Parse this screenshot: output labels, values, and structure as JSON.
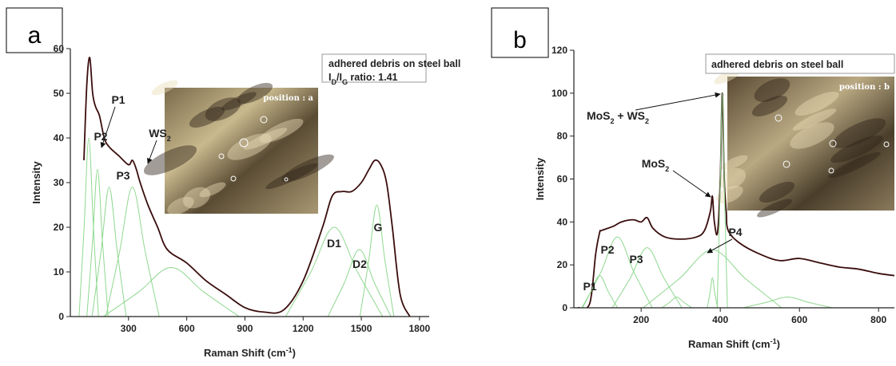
{
  "chart_data": [
    {
      "type": "line",
      "panel_label": "a",
      "xlabel": [
        "Raman Shift (cm",
        {
          "sup": "-1"
        },
        ")"
      ],
      "ylabel": "Intensity",
      "xlim": [
        0,
        1850
      ],
      "ylim": [
        0,
        60
      ],
      "xticks": [
        300,
        600,
        900,
        1200,
        1500,
        1800
      ],
      "yticks": [
        0,
        10,
        20,
        30,
        40,
        50,
        60
      ],
      "box_text": [
        "adhered debris on steel ball",
        [
          "I",
          {
            "sub": "D"
          },
          "/I",
          {
            "sub": "G"
          },
          " ratio: 1.41"
        ]
      ],
      "inset_label": "position : a",
      "annotations": [
        "P1",
        "P2",
        "P3",
        [
          "WS",
          {
            "sub": "2"
          }
        ],
        "D1",
        "D2",
        "G"
      ],
      "series": [
        {
          "color": "#3a0d0d",
          "x": [
            70,
            85,
            100,
            115,
            130,
            150,
            175,
            200,
            250,
            300,
            320,
            340,
            360,
            400,
            450,
            500,
            600,
            700,
            800,
            900,
            1000,
            1100,
            1200,
            1300,
            1350,
            1400,
            1450,
            1500,
            1540,
            1570,
            1600,
            1630,
            1660,
            1700,
            1750
          ],
          "values": [
            35,
            52,
            58,
            50,
            47,
            45,
            40,
            38,
            36,
            34,
            35,
            33,
            30,
            25,
            20,
            15,
            12,
            8,
            5,
            2,
            1,
            1.5,
            8,
            20,
            27,
            28,
            28,
            30,
            33,
            35,
            34,
            30,
            20,
            5,
            0
          ]
        },
        {
          "color": "#8fd88f",
          "x": [
            45,
            71,
            95,
            119,
            145
          ],
          "values": [
            0,
            20,
            40,
            20,
            0
          ]
        },
        {
          "color": "#8fd88f",
          "x": [
            85,
            114,
            140,
            166,
            195
          ],
          "values": [
            0,
            16.5,
            33,
            16.5,
            0
          ]
        },
        {
          "color": "#8fd88f",
          "x": [
            112,
            158,
            200,
            242,
            288
          ],
          "values": [
            0,
            14.5,
            29,
            14.5,
            0
          ]
        },
        {
          "color": "#8fd88f",
          "x": [
            183,
            254,
            320,
            386,
            458
          ],
          "values": [
            0,
            14.5,
            29,
            14.5,
            0
          ]
        },
        {
          "color": "#8fd88f",
          "x": [
            170,
            352,
            520,
            688,
            870
          ],
          "values": [
            0,
            5.5,
            11,
            5.5,
            0
          ]
        },
        {
          "color": "#8fd88f",
          "x": [
            1110,
            1240,
            1360,
            1480,
            1610
          ],
          "values": [
            0,
            10,
            20,
            10,
            0
          ]
        },
        {
          "color": "#8fd88f",
          "x": [
            1328,
            1412,
            1490,
            1568,
            1653
          ],
          "values": [
            0,
            7.5,
            15,
            7.5,
            0
          ]
        },
        {
          "color": "#8fd88f",
          "x": [
            1493,
            1538,
            1580,
            1622,
            1668
          ],
          "values": [
            0,
            12.5,
            25,
            12.5,
            0
          ]
        }
      ]
    },
    {
      "type": "line",
      "panel_label": "b",
      "xlabel": [
        "Raman Shift (cm",
        {
          "sup": "-1"
        },
        ")"
      ],
      "ylabel": "Intensity",
      "xlim": [
        30,
        840
      ],
      "ylim": [
        0,
        120
      ],
      "xticks": [
        200,
        400,
        600,
        800
      ],
      "yticks": [
        0,
        20,
        40,
        60,
        80,
        100,
        120
      ],
      "box_text": [
        "adhered debris on steel ball"
      ],
      "inset_label": "position : b",
      "annotations": [
        [
          "MoS",
          {
            "sub": "2"
          },
          " + WS",
          {
            "sub": "2"
          }
        ],
        [
          "MoS",
          {
            "sub": "2"
          }
        ],
        "P1",
        "P2",
        "P3",
        "P4"
      ],
      "series": [
        {
          "color": "#3a0d0d",
          "x": [
            40,
            70,
            85,
            95,
            100,
            130,
            150,
            180,
            200,
            215,
            230,
            260,
            300,
            340,
            360,
            375,
            380,
            385,
            393,
            400,
            405,
            410,
            415,
            420,
            450,
            500,
            550,
            600,
            650,
            700,
            750,
            800,
            840
          ],
          "values": [
            0,
            2,
            25,
            35,
            36,
            38,
            40,
            41,
            40,
            42,
            37,
            33,
            32,
            33,
            36,
            45,
            52,
            40,
            35,
            60,
            100,
            60,
            45,
            36,
            30,
            25,
            22,
            23,
            21,
            19,
            18,
            16,
            15
          ]
        },
        {
          "color": "#8fd88f",
          "x": [
            50,
            73,
            95,
            117,
            140
          ],
          "values": [
            0,
            7.5,
            15,
            7.5,
            0
          ]
        },
        {
          "color": "#8fd88f",
          "x": [
            52,
            98,
            140,
            182,
            228
          ],
          "values": [
            0,
            16.5,
            33,
            16.5,
            0
          ]
        },
        {
          "color": "#8fd88f",
          "x": [
            127,
            173,
            215,
            257,
            303
          ],
          "values": [
            0,
            14,
            28,
            14,
            0
          ]
        },
        {
          "color": "#8fd88f",
          "x": [
            252,
            272,
            290,
            308,
            328
          ],
          "values": [
            0,
            2.5,
            5,
            2.5,
            0
          ]
        },
        {
          "color": "#8fd88f",
          "x": [
            205,
            296,
            380,
            464,
            555
          ],
          "values": [
            0,
            13.5,
            27,
            13.5,
            0
          ]
        },
        {
          "color": "#8fd88f",
          "x": [
            367,
            374,
            380,
            386,
            393
          ],
          "values": [
            0,
            7,
            14,
            7,
            0
          ]
        },
        {
          "color": "#8fd88f",
          "x": [
            392,
            399,
            405,
            411,
            418
          ],
          "values": [
            0,
            50,
            100,
            50,
            0
          ]
        },
        {
          "color": "#8fd88f",
          "x": [
            458,
            516,
            570,
            624,
            683
          ],
          "values": [
            0,
            2.5,
            5,
            2.5,
            0
          ]
        }
      ]
    }
  ]
}
